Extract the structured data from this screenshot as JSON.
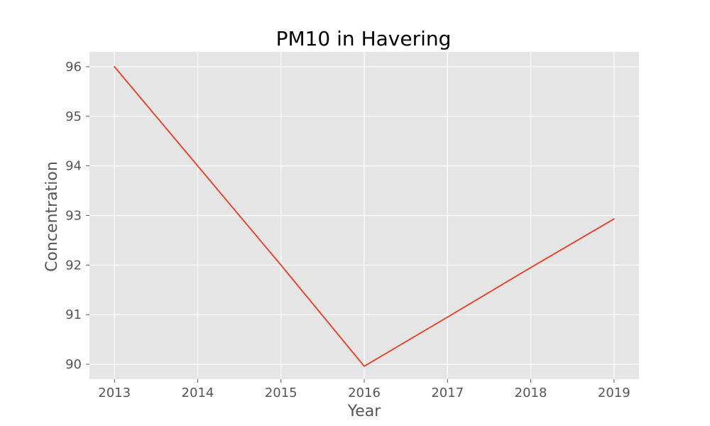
{
  "chart_data": {
    "type": "line",
    "title": "PM10 in Havering",
    "xlabel": "Year",
    "ylabel": "Concentration",
    "x": [
      2013,
      2014,
      2015,
      2016,
      2017,
      2018,
      2019
    ],
    "series": [
      {
        "values": [
          96.0,
          94.0,
          92.0,
          89.96,
          90.95,
          91.95,
          92.93
        ],
        "color": "#e24a33"
      }
    ],
    "xticks": [
      "2013",
      "2014",
      "2015",
      "2016",
      "2017",
      "2018",
      "2019"
    ],
    "yticks": [
      "90",
      "91",
      "92",
      "93",
      "94",
      "95",
      "96"
    ],
    "xlim": [
      2012.7,
      2019.3
    ],
    "ylim": [
      89.7,
      96.3
    ],
    "grid": true,
    "background": "#e5e5e5"
  }
}
